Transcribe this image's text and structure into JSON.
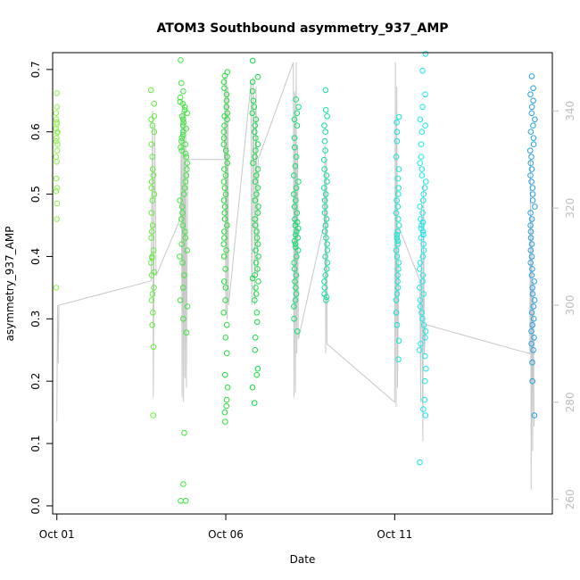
{
  "chart_data": {
    "type": "scatter",
    "title": "ATOM3 Southbound asymmetry_937_AMP",
    "xlabel": "Date",
    "ylabel": "asymmetry_937_AMP",
    "xlim": [
      "2023-09-30T21:00",
      "2023-10-15T16:00"
    ],
    "ylim": [
      -0.013,
      0.727
    ],
    "y2lim": [
      257,
      352
    ],
    "x_ticks": [
      {
        "x": "2023-10-01T00:00",
        "label": "Oct 01"
      },
      {
        "x": "2023-10-06T00:00",
        "label": "Oct 06"
      },
      {
        "x": "2023-10-11T00:00",
        "label": "Oct 11"
      }
    ],
    "y_ticks": [
      {
        "y": 0.0,
        "label": "0.0"
      },
      {
        "y": 0.1,
        "label": "0.1"
      },
      {
        "y": 0.2,
        "label": "0.2"
      },
      {
        "y": 0.3,
        "label": "0.3"
      },
      {
        "y": 0.4,
        "label": "0.4"
      },
      {
        "y": 0.5,
        "label": "0.5"
      },
      {
        "y": 0.6,
        "label": "0.6"
      },
      {
        "y": 0.7,
        "label": "0.7"
      }
    ],
    "y2_ticks": [
      {
        "y": 260,
        "label": "260"
      },
      {
        "y": 280,
        "label": "280"
      },
      {
        "y": 300,
        "label": "300"
      },
      {
        "y": 320,
        "label": "320"
      },
      {
        "y": 340,
        "label": "340"
      }
    ],
    "grid": false,
    "marker": "open-circle",
    "line_color": "#c8c8c8",
    "y2_color": "#bdbdbd",
    "clusters": [
      {
        "center": "2023-10-01T00:00",
        "span_hours": 1.5,
        "color": "#8cf046",
        "values": [
          0.662,
          0.64,
          0.63,
          0.62,
          0.615,
          0.612,
          0.605,
          0.6,
          0.598,
          0.59,
          0.585,
          0.58,
          0.57,
          0.56,
          0.552,
          0.525,
          0.51,
          0.505,
          0.485,
          0.46,
          0.35
        ]
      },
      {
        "center": "2023-10-03T20:00",
        "span_hours": 2.5,
        "color": "#5ef03c",
        "values": [
          0.667,
          0.645,
          0.625,
          0.62,
          0.61,
          0.6,
          0.58,
          0.56,
          0.54,
          0.53,
          0.52,
          0.51,
          0.5,
          0.49,
          0.47,
          0.45,
          0.44,
          0.43,
          0.41,
          0.4,
          0.398,
          0.39,
          0.375,
          0.37,
          0.35,
          0.34,
          0.33,
          0.31,
          0.29,
          0.255,
          0.145
        ]
      },
      {
        "center": "2023-10-04T18:00",
        "span_hours": 5.5,
        "color": "#3ce83c",
        "values": [
          0.715,
          0.678,
          0.665,
          0.655,
          0.648,
          0.645,
          0.64,
          0.635,
          0.63,
          0.625,
          0.62,
          0.615,
          0.61,
          0.605,
          0.6,
          0.595,
          0.59,
          0.585,
          0.58,
          0.575,
          0.57,
          0.565,
          0.56,
          0.55,
          0.54,
          0.53,
          0.52,
          0.51,
          0.5,
          0.49,
          0.48,
          0.47,
          0.46,
          0.45,
          0.44,
          0.43,
          0.42,
          0.41,
          0.4,
          0.39,
          0.37,
          0.35,
          0.33,
          0.32,
          0.3,
          0.278,
          0.117,
          0.035,
          0.008,
          0.008
        ]
      },
      {
        "center": "2023-10-06T00:00",
        "span_hours": 3,
        "color": "#24e03c",
        "values": [
          0.696,
          0.69,
          0.68,
          0.67,
          0.66,
          0.65,
          0.64,
          0.63,
          0.625,
          0.62,
          0.61,
          0.6,
          0.59,
          0.58,
          0.57,
          0.56,
          0.55,
          0.54,
          0.53,
          0.52,
          0.51,
          0.5,
          0.49,
          0.48,
          0.47,
          0.46,
          0.45,
          0.44,
          0.43,
          0.42,
          0.41,
          0.4,
          0.38,
          0.36,
          0.35,
          0.33,
          0.31,
          0.29,
          0.27,
          0.245,
          0.21,
          0.19,
          0.17,
          0.16,
          0.15,
          0.135
        ]
      },
      {
        "center": "2023-10-06T21:00",
        "span_hours": 4.5,
        "color": "#14dc46",
        "values": [
          0.714,
          0.688,
          0.68,
          0.665,
          0.65,
          0.64,
          0.63,
          0.62,
          0.61,
          0.6,
          0.59,
          0.58,
          0.57,
          0.56,
          0.55,
          0.54,
          0.53,
          0.52,
          0.51,
          0.5,
          0.49,
          0.48,
          0.47,
          0.46,
          0.45,
          0.44,
          0.43,
          0.42,
          0.41,
          0.4,
          0.39,
          0.38,
          0.37,
          0.365,
          0.36,
          0.35,
          0.34,
          0.33,
          0.31,
          0.295,
          0.27,
          0.25,
          0.22,
          0.21,
          0.19,
          0.165
        ]
      },
      {
        "center": "2023-10-08T02:00",
        "span_hours": 3.5,
        "color": "#10e070",
        "values": [
          0.652,
          0.64,
          0.63,
          0.62,
          0.61,
          0.59,
          0.575,
          0.56,
          0.545,
          0.53,
          0.52,
          0.51,
          0.5,
          0.49,
          0.48,
          0.47,
          0.46,
          0.455,
          0.45,
          0.445,
          0.44,
          0.435,
          0.43,
          0.425,
          0.42,
          0.415,
          0.41,
          0.4,
          0.39,
          0.38,
          0.37,
          0.36,
          0.35,
          0.34,
          0.33,
          0.32,
          0.3,
          0.28
        ]
      },
      {
        "center": "2023-10-08T23:00",
        "span_hours": 2.5,
        "color": "#10e096",
        "values": [
          0.667,
          0.635,
          0.625,
          0.61,
          0.6,
          0.585,
          0.57,
          0.555,
          0.54,
          0.53,
          0.52,
          0.51,
          0.5,
          0.49,
          0.48,
          0.47,
          0.46,
          0.45,
          0.44,
          0.43,
          0.42,
          0.41,
          0.4,
          0.39,
          0.38,
          0.37,
          0.36,
          0.35,
          0.34,
          0.335,
          0.33
        ]
      },
      {
        "center": "2023-10-11T02:00",
        "span_hours": 2.5,
        "color": "#10e8d2",
        "values": [
          0.624,
          0.615,
          0.6,
          0.585,
          0.56,
          0.54,
          0.525,
          0.51,
          0.5,
          0.49,
          0.48,
          0.47,
          0.46,
          0.45,
          0.44,
          0.435,
          0.43,
          0.425,
          0.42,
          0.41,
          0.4,
          0.39,
          0.38,
          0.37,
          0.36,
          0.35,
          0.34,
          0.33,
          0.31,
          0.29,
          0.265,
          0.235
        ]
      },
      {
        "center": "2023-10-11T20:00",
        "span_hours": 4.5,
        "color": "#18e8ec",
        "values": [
          0.725,
          0.698,
          0.66,
          0.64,
          0.62,
          0.61,
          0.6,
          0.58,
          0.56,
          0.55,
          0.54,
          0.53,
          0.52,
          0.51,
          0.5,
          0.49,
          0.48,
          0.47,
          0.46,
          0.455,
          0.45,
          0.445,
          0.44,
          0.435,
          0.43,
          0.42,
          0.41,
          0.4,
          0.39,
          0.38,
          0.37,
          0.36,
          0.35,
          0.34,
          0.33,
          0.32,
          0.31,
          0.3,
          0.29,
          0.28,
          0.27,
          0.26,
          0.25,
          0.24,
          0.22,
          0.2,
          0.17,
          0.155,
          0.145,
          0.07
        ]
      },
      {
        "center": "2023-10-15T02:00",
        "span_hours": 3.5,
        "color": "#24a0e8",
        "values": [
          0.689,
          0.67,
          0.66,
          0.65,
          0.64,
          0.63,
          0.62,
          0.61,
          0.6,
          0.59,
          0.58,
          0.57,
          0.56,
          0.55,
          0.54,
          0.53,
          0.52,
          0.51,
          0.5,
          0.49,
          0.48,
          0.47,
          0.46,
          0.45,
          0.44,
          0.43,
          0.42,
          0.41,
          0.4,
          0.39,
          0.38,
          0.37,
          0.36,
          0.35,
          0.34,
          0.33,
          0.32,
          0.31,
          0.3,
          0.29,
          0.28,
          0.27,
          0.26,
          0.25,
          0.23,
          0.2,
          0.145
        ]
      }
    ],
    "line_series": {
      "axis": "right",
      "points": [
        [
          "2023-10-01T00:00",
          276
        ],
        [
          "2023-10-01T00:30",
          300
        ],
        [
          "2023-10-01T01:00",
          288
        ],
        [
          "2023-10-01T01:30",
          300
        ],
        [
          "2023-10-03T19:00",
          305
        ],
        [
          "2023-10-03T20:00",
          340
        ],
        [
          "2023-10-03T20:30",
          281
        ],
        [
          "2023-10-03T21:30",
          337
        ],
        [
          "2023-10-03T22:30",
          306
        ],
        [
          "2023-10-04T16:00",
          318
        ],
        [
          "2023-10-04T16:30",
          340
        ],
        [
          "2023-10-04T17:00",
          281
        ],
        [
          "2023-10-04T17:30",
          342
        ],
        [
          "2023-10-04T18:00",
          280
        ],
        [
          "2023-10-04T18:30",
          341
        ],
        [
          "2023-10-04T19:00",
          285
        ],
        [
          "2023-10-04T19:30",
          340
        ],
        [
          "2023-10-04T20:00",
          283
        ],
        [
          "2023-10-04T21:00",
          330
        ],
        [
          "2023-10-05T23:00",
          330
        ],
        [
          "2023-10-05T23:30",
          348
        ],
        [
          "2023-10-06T00:00",
          298
        ],
        [
          "2023-10-06T00:30",
          347
        ],
        [
          "2023-10-06T01:00",
          297
        ],
        [
          "2023-10-06T01:30",
          345
        ],
        [
          "2023-10-06T02:00",
          300
        ],
        [
          "2023-10-06T18:00",
          346
        ],
        [
          "2023-10-06T18:30",
          300
        ],
        [
          "2023-10-06T19:30",
          347
        ],
        [
          "2023-10-06T20:30",
          300
        ],
        [
          "2023-10-06T21:30",
          345
        ],
        [
          "2023-10-06T22:30",
          306
        ],
        [
          "2023-10-06T23:00",
          330
        ],
        [
          "2023-10-08T00:00",
          350
        ],
        [
          "2023-10-08T00:30",
          281
        ],
        [
          "2023-10-08T01:00",
          344
        ],
        [
          "2023-10-08T01:30",
          282
        ],
        [
          "2023-10-08T02:00",
          350
        ],
        [
          "2023-10-08T02:30",
          290
        ],
        [
          "2023-10-08T03:00",
          333
        ],
        [
          "2023-10-08T03:30",
          293
        ],
        [
          "2023-10-08T22:00",
          317
        ],
        [
          "2023-10-08T22:30",
          333
        ],
        [
          "2023-10-08T23:00",
          290
        ],
        [
          "2023-10-08T23:30",
          330
        ],
        [
          "2023-10-09T00:00",
          292
        ],
        [
          "2023-10-11T00:00",
          280
        ],
        [
          "2023-10-11T00:30",
          350
        ],
        [
          "2023-10-11T01:00",
          279
        ],
        [
          "2023-10-11T01:30",
          345
        ],
        [
          "2023-10-11T02:00",
          283
        ],
        [
          "2023-10-11T03:00",
          316
        ],
        [
          "2023-10-11T18:00",
          305
        ],
        [
          "2023-10-11T18:30",
          280
        ],
        [
          "2023-10-11T19:00",
          322
        ],
        [
          "2023-10-11T20:00",
          272
        ],
        [
          "2023-10-11T20:30",
          325
        ],
        [
          "2023-10-11T21:00",
          290
        ],
        [
          "2023-10-11T22:00",
          296
        ],
        [
          "2023-10-15T00:00",
          290
        ],
        [
          "2023-10-15T00:30",
          330
        ],
        [
          "2023-10-15T01:00",
          262
        ],
        [
          "2023-10-15T01:30",
          318
        ],
        [
          "2023-10-15T02:00",
          270
        ],
        [
          "2023-10-15T02:30",
          305
        ],
        [
          "2023-10-15T03:00",
          275
        ]
      ]
    }
  }
}
